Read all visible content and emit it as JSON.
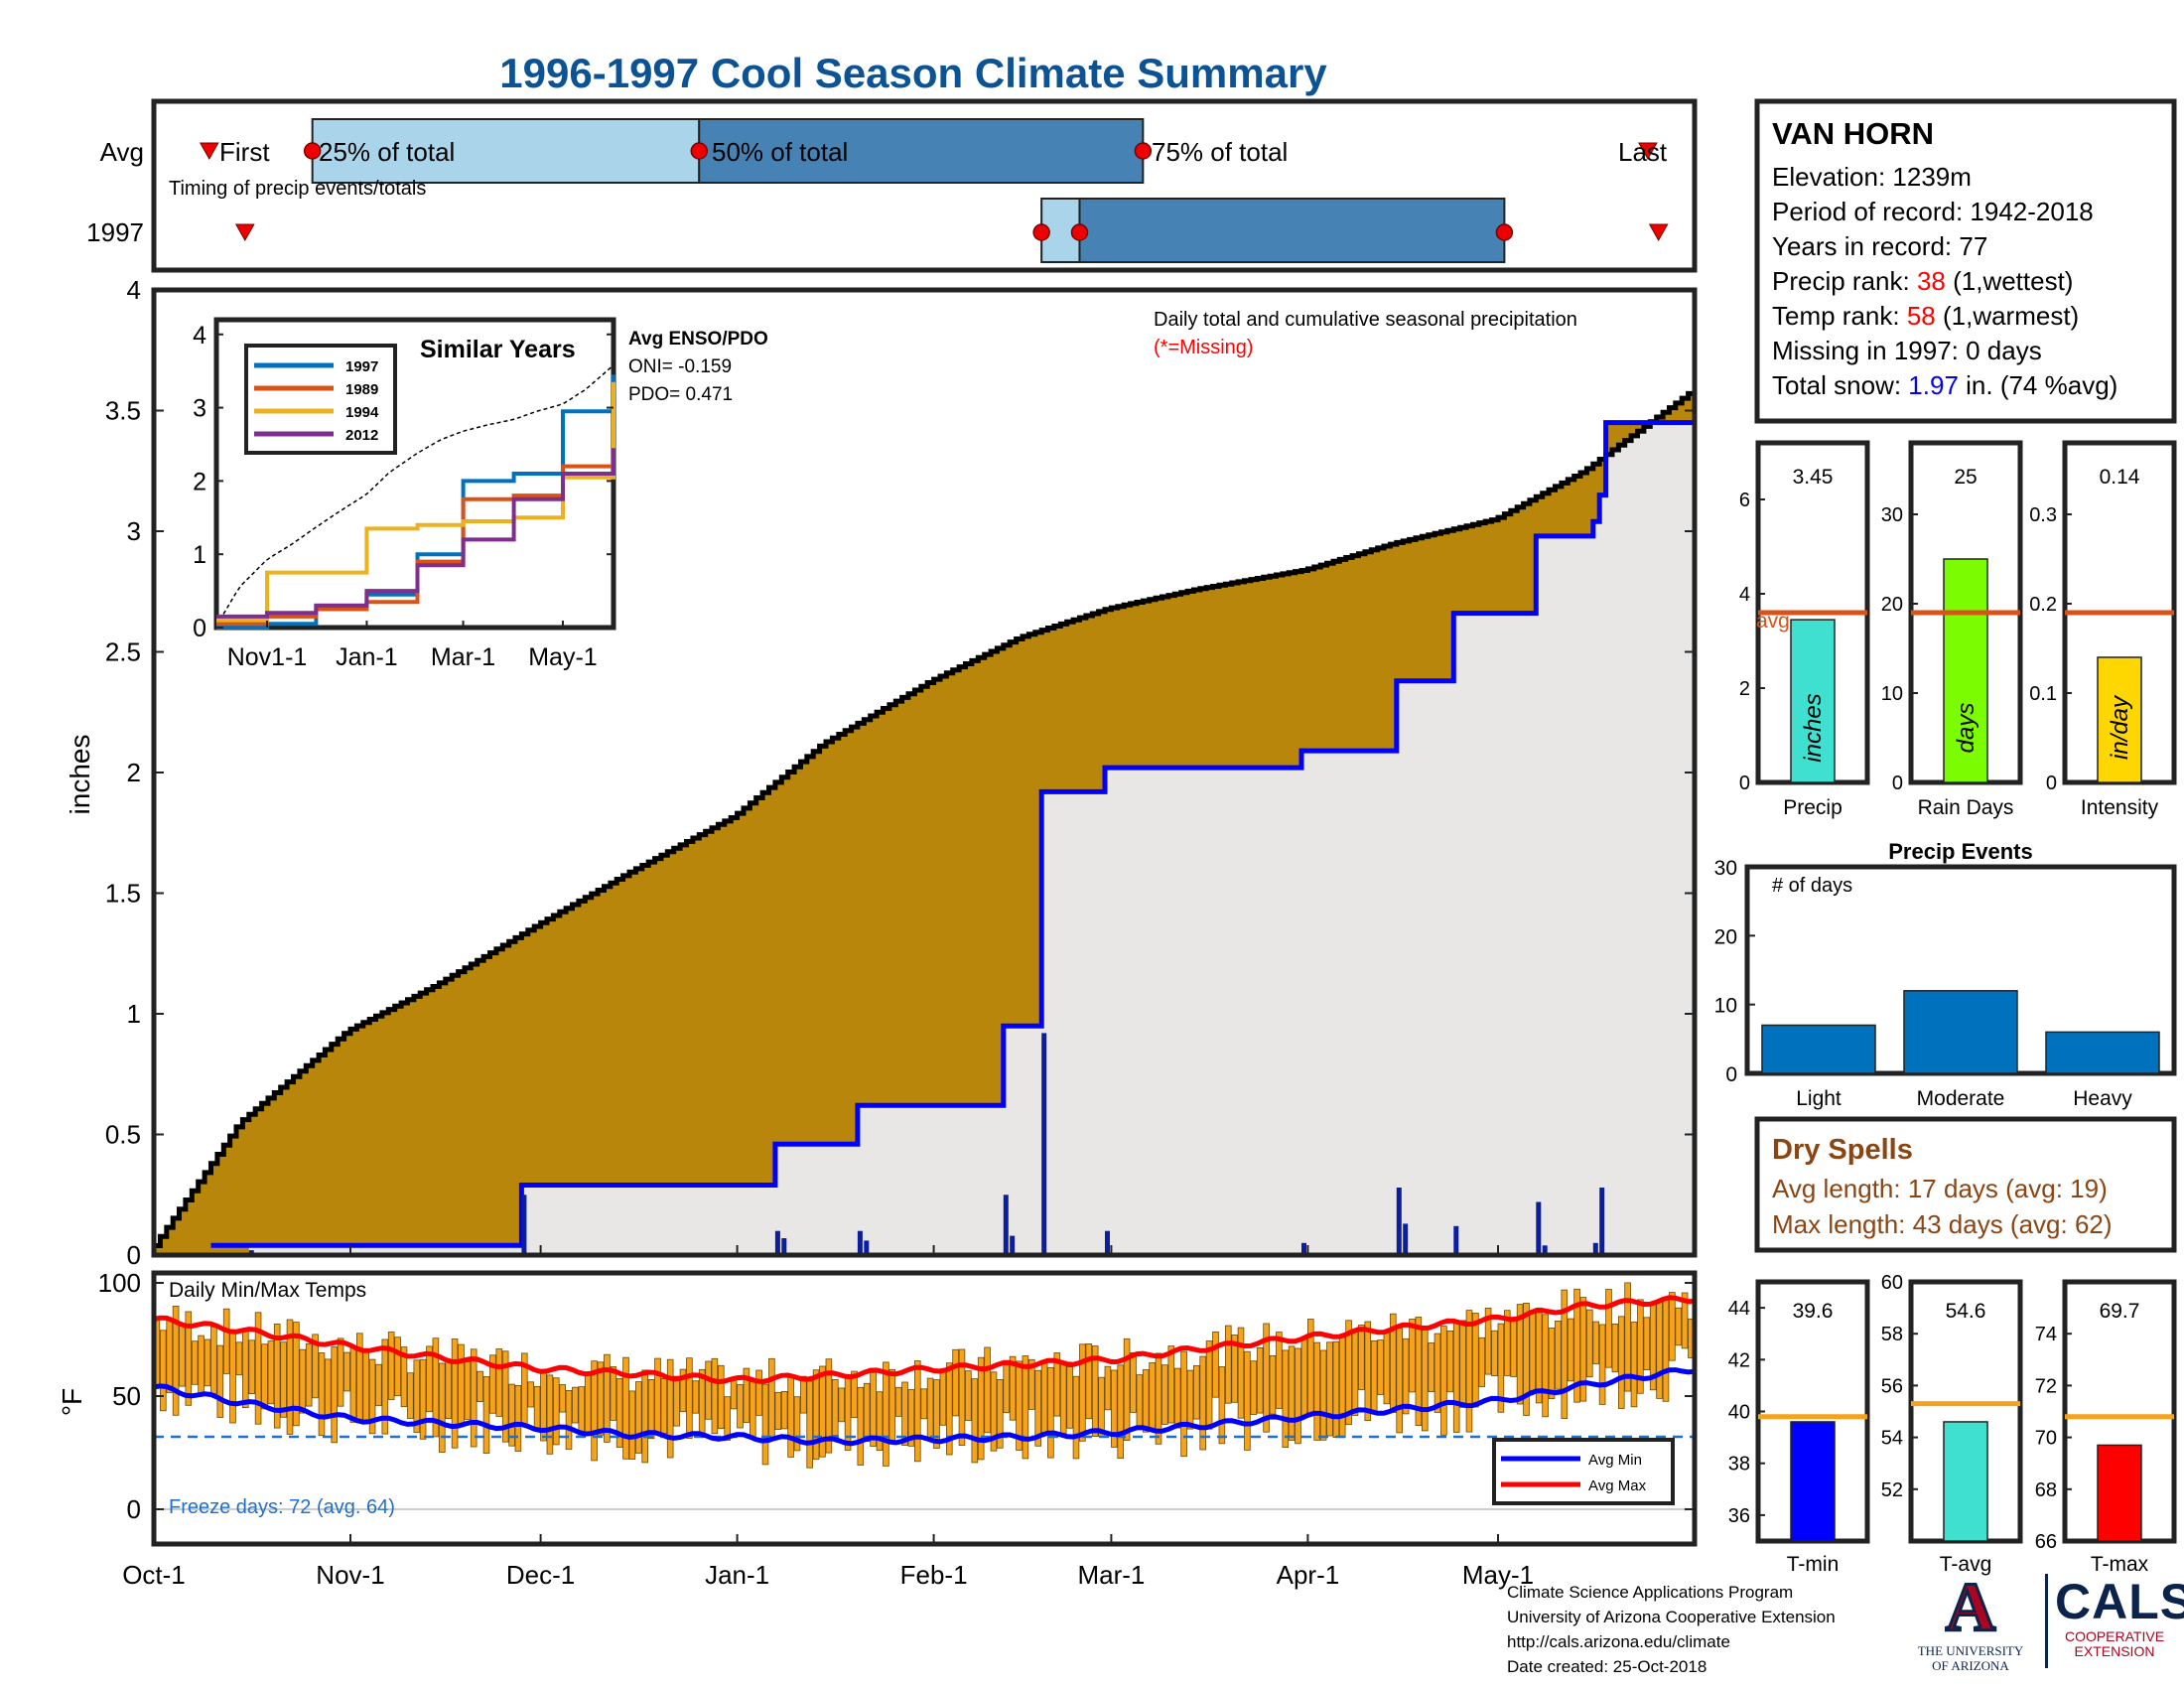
{
  "title": "1996-1997 Cool Season Climate Summary",
  "colors": {
    "title": "#0b5394",
    "fill_cumulative": "#b8860b",
    "avg_line": "#0000ff",
    "grey_fill": "#e8e7e6",
    "event_bar": "#0b1e9e",
    "temp_bar": "#f5a21c",
    "avg_min": "#0000ff",
    "avg_max": "#ff0000",
    "freeze_line": "#1f6fcc",
    "light_blue": "#a9d4ea",
    "mid_blue": "#4682b4",
    "marker": "#ff0000"
  },
  "timing": {
    "row_labels": [
      "Avg",
      "1997"
    ],
    "caption": "Timing of precip events/totals",
    "avg": {
      "first": "Oct-16",
      "p25": "Oct-26",
      "p50": "Dec-26",
      "p75": "Mar-6",
      "last": "May-24",
      "labels": [
        "First",
        "25% of total",
        "50% of total",
        "75% of total",
        "Last"
      ]
    },
    "y1997": {
      "first": "Oct-16",
      "p25": "Feb-18",
      "p50": "Feb-24",
      "p75": "May-2",
      "last": "May-26"
    }
  },
  "station": {
    "name": "VAN HORN",
    "elevation_label": "Elevation: 1239m",
    "period_label": "Period of record: 1942-2018",
    "years_label": "Years in record: 77",
    "precip_rank_prefix": "Precip rank: ",
    "precip_rank_value": "38",
    "precip_rank_suffix": " (1,wettest)",
    "temp_rank_prefix": "Temp rank: ",
    "temp_rank_value": "58",
    "temp_rank_suffix": " (1,warmest)",
    "missing_label": "Missing in 1997: 0 days",
    "snow_prefix": "Total snow: ",
    "snow_value": "1.97",
    "snow_suffix": " in. (74 %avg)"
  },
  "main_plot": {
    "ylabel": "inches",
    "legend_line1": "Daily total and cumulative seasonal precipitation",
    "legend_line2": "(*=Missing)",
    "yticks": [
      "0",
      "0.5",
      "1",
      "1.5",
      "2",
      "2.5",
      "3",
      "3.5",
      "4"
    ],
    "xticks": [
      "Oct-1",
      "Nov-1",
      "Dec-1",
      "Jan-1",
      "Feb-1",
      "Mar-1",
      "Apr-1",
      "May-1"
    ]
  },
  "inset": {
    "title": "Similar Years",
    "enso_title": "Avg ENSO/PDO",
    "oni_label": "ONI= -0.159",
    "pdo_label": "PDO= 0.471",
    "legend": [
      {
        "name": "1997",
        "color": "#0072bd"
      },
      {
        "name": "1989",
        "color": "#d95319"
      },
      {
        "name": "1994",
        "color": "#edb120"
      },
      {
        "name": "2012",
        "color": "#7e2f8e"
      }
    ],
    "yticks": [
      "0",
      "1",
      "2",
      "3",
      "4"
    ],
    "xticks": [
      "Nov1-1",
      "Jan-1",
      "Mar-1",
      "May-1"
    ]
  },
  "temp_plot": {
    "ylabel": "°F",
    "title": "Daily Min/Max Temps",
    "freeze_label": "Freeze days: 72 (avg. 64)",
    "legend_min": "Avg Min",
    "legend_max": "Avg Max",
    "yticks": [
      "0",
      "50",
      "100"
    ]
  },
  "precip_panels": [
    {
      "value_label": "3.45",
      "unit": "inches",
      "xlabel": "Precip",
      "avg_label": "avg",
      "yticks": [
        "0",
        "2",
        "4",
        "6"
      ],
      "ymax": 7.2,
      "avg": 3.6,
      "value": 3.45,
      "color": "#40e0d0"
    },
    {
      "value_label": "25",
      "unit": "days",
      "xlabel": "Rain Days",
      "yticks": [
        "0",
        "10",
        "20",
        "30"
      ],
      "ymax": 38,
      "avg": 19,
      "value": 25,
      "color": "#7cfc00"
    },
    {
      "value_label": "0.14",
      "unit": "in/day",
      "xlabel": "Intensity",
      "yticks": [
        "0",
        "0.1",
        "0.2",
        "0.3"
      ],
      "ymax": 0.38,
      "avg": 0.19,
      "value": 0.14,
      "color": "#ffd700"
    }
  ],
  "events": {
    "title": "Precip Events",
    "ylabel": "# of days",
    "yticks": [
      "0",
      "10",
      "20",
      "30"
    ],
    "categories": [
      "Light",
      "Moderate",
      "Heavy"
    ],
    "values": [
      7,
      12,
      6
    ]
  },
  "dry_spells": {
    "title": "Dry Spells",
    "avg_length_label": "Avg length: 17 days (avg: 19)",
    "max_length_label": "Max length: 43 days (avg: 62)"
  },
  "temp_panels": [
    {
      "value_label": "39.6",
      "xlabel": "T-min",
      "yticks": [
        "36",
        "38",
        "40",
        "42",
        "44"
      ],
      "ymin": 35,
      "ymax": 45,
      "avg": 39.8,
      "value": 39.6,
      "color": "#0000ff"
    },
    {
      "value_label": "54.6",
      "xlabel": "T-avg",
      "yticks": [
        "52",
        "54",
        "56",
        "58",
        "60"
      ],
      "ymin": 50,
      "ymax": 60,
      "avg": 55.3,
      "value": 54.6,
      "color": "#40e0d0"
    },
    {
      "value_label": "69.7",
      "xlabel": "T-max",
      "yticks": [
        "66",
        "68",
        "70",
        "72",
        "74"
      ],
      "ymin": 66,
      "ymax": 76,
      "avg": 70.8,
      "value": 69.7,
      "color": "#ff0000"
    }
  ],
  "footer": {
    "line1": "Climate Science Applications Program",
    "line2": "University of Arizona Cooperative Extension",
    "line3": "http://cals.arizona.edu/climate",
    "line4": " Date created: 25-Oct-2018"
  },
  "logos": {
    "ua_mark": "A",
    "ua_line1": "THE UNIVERSITY",
    "ua_line2": "OF ARIZONA",
    "cals": "CALS",
    "cals_line1": "COOPERATIVE",
    "cals_line2": "EXTENSION"
  },
  "chart_data": [
    {
      "type": "area",
      "title": "Daily total and cumulative seasonal precipitation",
      "xlabel": "",
      "ylabel": "inches",
      "ylim": [
        0,
        4
      ],
      "series": [
        {
          "name": "",
          "x": [
            "Oct-1",
            "Oct-15",
            "Nov-1",
            "Nov-15",
            "Dec-1",
            "Dec-15",
            "Jan-1",
            "Jan-15",
            "Feb-1",
            "Feb-15",
            "Mar-1",
            "Mar-15",
            "Apr-1",
            "Apr-15",
            "May-1",
            "May-15",
            "May-31"
          ],
          "values": [
            0.02,
            0.55,
            0.93,
            1.12,
            1.37,
            1.58,
            1.82,
            2.12,
            2.38,
            2.56,
            2.68,
            2.76,
            2.84,
            2.95,
            3.05,
            3.25,
            3.58
          ]
        }
      ],
      "cumulative_1997_steps": [
        {
          "date": "Oct-16",
          "value": 0.04
        },
        {
          "date": "Nov-28",
          "value": 0.29
        },
        {
          "date": "Jan-7",
          "value": 0.46
        },
        {
          "date": "Jan-20",
          "value": 0.62
        },
        {
          "date": "Feb-12",
          "value": 0.95
        },
        {
          "date": "Feb-18",
          "value": 1.92
        },
        {
          "date": "Feb-28",
          "value": 2.02
        },
        {
          "date": "Mar-31",
          "value": 2.09
        },
        {
          "date": "Apr-15",
          "value": 2.38
        },
        {
          "date": "Apr-24",
          "value": 2.66
        },
        {
          "date": "May-7",
          "value": 2.98
        },
        {
          "date": "May-16",
          "value": 3.04
        },
        {
          "date": "May-17",
          "value": 3.15
        },
        {
          "date": "May-18",
          "value": 3.45
        }
      ],
      "daily_precip": [
        {
          "date": "Oct-16",
          "value": 0.02
        },
        {
          "date": "Nov-28",
          "value": 0.25
        },
        {
          "date": "Jan-7",
          "value": 0.1
        },
        {
          "date": "Jan-8",
          "value": 0.07
        },
        {
          "date": "Jan-20",
          "value": 0.1
        },
        {
          "date": "Jan-21",
          "value": 0.06
        },
        {
          "date": "Feb-12",
          "value": 0.25
        },
        {
          "date": "Feb-13",
          "value": 0.08
        },
        {
          "date": "Feb-18",
          "value": 0.92
        },
        {
          "date": "Feb-28",
          "value": 0.1
        },
        {
          "date": "Mar-31",
          "value": 0.05
        },
        {
          "date": "Apr-15",
          "value": 0.28
        },
        {
          "date": "Apr-16",
          "value": 0.13
        },
        {
          "date": "Apr-24",
          "value": 0.12
        },
        {
          "date": "May-7",
          "value": 0.22
        },
        {
          "date": "May-8",
          "value": 0.04
        },
        {
          "date": "May-16",
          "value": 0.05
        },
        {
          "date": "May-17",
          "value": 0.28
        }
      ]
    },
    {
      "type": "line",
      "title": "Similar Years",
      "xlabel": "",
      "ylabel": "",
      "ylim": [
        0,
        4
      ],
      "x": [
        "Oct-1",
        "Nov-1",
        "Dec-1",
        "Jan-1",
        "Feb-1",
        "Mar-1",
        "Apr-1",
        "May-1",
        "May-31"
      ],
      "series": [
        {
          "name": "1997",
          "values": [
            0,
            0.05,
            0.3,
            0.45,
            1.0,
            2.0,
            2.1,
            2.95,
            3.45
          ]
        },
        {
          "name": "1989",
          "values": [
            0.05,
            0.15,
            0.25,
            0.35,
            0.9,
            1.75,
            1.8,
            2.2,
            2.45
          ]
        },
        {
          "name": "1994",
          "values": [
            0.1,
            0.75,
            0.75,
            1.35,
            1.4,
            1.45,
            1.5,
            2.05,
            3.35
          ]
        },
        {
          "name": "2012",
          "values": [
            0.15,
            0.2,
            0.3,
            0.5,
            0.85,
            1.2,
            1.75,
            2.1,
            2.45
          ]
        }
      ]
    },
    {
      "type": "bar",
      "title": "Daily Min/Max Temps",
      "xlabel": "",
      "ylabel": "°F",
      "ylim": [
        0,
        100
      ],
      "x": [
        "Oct-1",
        "Oct-15",
        "Nov-1",
        "Nov-15",
        "Dec-1",
        "Dec-15",
        "Jan-1",
        "Jan-15",
        "Feb-1",
        "Feb-15",
        "Mar-1",
        "Mar-15",
        "Apr-1",
        "Apr-15",
        "May-1",
        "May-15",
        "May-31"
      ],
      "series": [
        {
          "name": "Avg Min",
          "values": [
            54,
            47,
            40,
            38,
            36,
            33,
            32,
            30,
            31,
            32,
            34,
            37,
            41,
            44,
            48,
            55,
            62
          ]
        },
        {
          "name": "Avg Max",
          "values": [
            84,
            79,
            72,
            67,
            62,
            60,
            57,
            59,
            62,
            64,
            66,
            71,
            76,
            80,
            84,
            90,
            93
          ]
        }
      ],
      "freeze_threshold": 32
    },
    {
      "type": "bar",
      "title": "",
      "xlabel": "Precip",
      "ylabel": "",
      "ylim": [
        0,
        7.2
      ],
      "categories": [
        "inches"
      ],
      "values": [
        3.45
      ],
      "avg": 3.6
    },
    {
      "type": "bar",
      "title": "",
      "xlabel": "Rain Days",
      "ylabel": "",
      "ylim": [
        0,
        38
      ],
      "categories": [
        "days"
      ],
      "values": [
        25
      ],
      "avg": 19
    },
    {
      "type": "bar",
      "title": "",
      "xlabel": "Intensity",
      "ylabel": "",
      "ylim": [
        0,
        0.38
      ],
      "categories": [
        "in/day"
      ],
      "values": [
        0.14
      ],
      "avg": 0.19
    },
    {
      "type": "bar",
      "title": "Precip Events",
      "xlabel": "",
      "ylabel": "# of days",
      "ylim": [
        0,
        30
      ],
      "categories": [
        "Light",
        "Moderate",
        "Heavy"
      ],
      "values": [
        7,
        12,
        6
      ]
    },
    {
      "type": "bar",
      "title": "",
      "xlabel": "T-min",
      "ylabel": "",
      "ylim": [
        35,
        45
      ],
      "categories": [
        "T-min"
      ],
      "values": [
        39.6
      ],
      "avg": 39.8
    },
    {
      "type": "bar",
      "title": "",
      "xlabel": "T-avg",
      "ylabel": "",
      "ylim": [
        50,
        60
      ],
      "categories": [
        "T-avg"
      ],
      "values": [
        54.6
      ],
      "avg": 55.3
    },
    {
      "type": "bar",
      "title": "",
      "xlabel": "T-max",
      "ylabel": "",
      "ylim": [
        66,
        76
      ],
      "categories": [
        "T-max"
      ],
      "values": [
        69.7
      ],
      "avg": 70.8
    }
  ]
}
